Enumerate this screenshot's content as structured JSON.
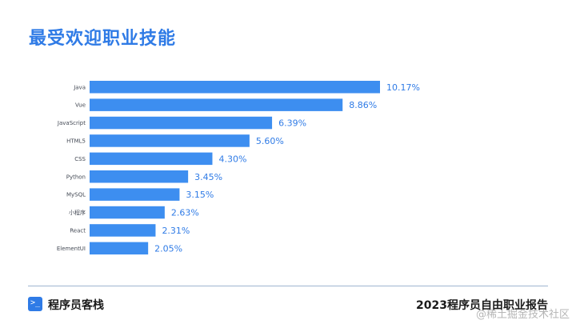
{
  "title": "最受欢迎职业技能",
  "chart_data": {
    "type": "bar",
    "orientation": "horizontal",
    "title": "最受欢迎职业技能",
    "categories": [
      "Java",
      "Vue",
      "JavaScript",
      "HTML5",
      "CSS",
      "Python",
      "MySQL",
      "小程序",
      "React",
      "ElementUI"
    ],
    "values": [
      10.17,
      8.86,
      6.39,
      5.6,
      4.3,
      3.45,
      3.15,
      2.63,
      2.31,
      2.05
    ],
    "value_labels": [
      "10.17%",
      "8.86%",
      "6.39%",
      "5.60%",
      "4.30%",
      "3.45%",
      "3.15%",
      "2.63%",
      "2.31%",
      "2.05%"
    ],
    "xlabel": "",
    "ylabel": "",
    "grid": false,
    "bar_color": "#3d8ef0",
    "label_color": "#2f7be6"
  },
  "footer": {
    "brand_icon": ">_",
    "brand": "程序员客栈",
    "report": "2023程序员自由职业报告"
  },
  "watermark": "@稀土掘金技术社区"
}
